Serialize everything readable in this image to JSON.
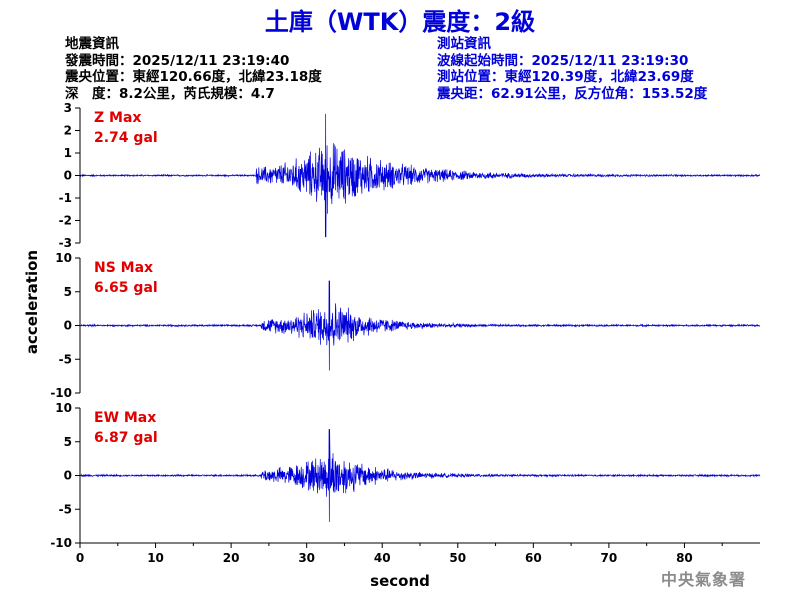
{
  "title": "土庫（WTK）震度：2級",
  "quake_info": {
    "heading": "地震資訊",
    "time": "發震時間：2025/12/11 23:19:40",
    "epicenter": "震央位置：東經120.66度，北緯23.18度",
    "depth_magnitude": "深　度：8.2公里，芮氏規模：4.7"
  },
  "station_info": {
    "heading": "測站資訊",
    "wave_start": "波線起始時間：2025/12/11 23:19:30",
    "location": "測站位置：東經120.39度，北緯23.69度",
    "distance_azimuth": "震央距：62.91公里，反方位角：153.52度"
  },
  "agency": "中央氣象署",
  "colors": {
    "title": "#0000d8",
    "trace": "#0000dd",
    "max_label": "#e00000",
    "agency": "#8c8c8c"
  },
  "chart_data": {
    "type": "line",
    "xlabel": "second",
    "ylabel": "acceleration",
    "xlim": [
      0,
      90
    ],
    "xticks": [
      0,
      10,
      20,
      30,
      40,
      50,
      60,
      70,
      80
    ],
    "panels": [
      {
        "component": "Z",
        "max_label": "Z Max",
        "max_value": "2.74 gal",
        "ylim": [
          -3,
          3
        ],
        "yticks": [
          -3,
          -2,
          -1,
          0,
          1,
          2,
          3
        ],
        "trace_envelope": {
          "noise": 0.04,
          "onset_s": 23.3,
          "peak_s": 32.5,
          "peak_abs": 2.74,
          "decay_tail_s": 52
        }
      },
      {
        "component": "NS",
        "max_label": "NS Max",
        "max_value": "6.65 gal",
        "ylim": [
          -10,
          10
        ],
        "yticks": [
          -10,
          -5,
          0,
          5,
          10
        ],
        "trace_envelope": {
          "noise": 0.15,
          "onset_s": 24.0,
          "peak_s": 33.0,
          "peak_abs": 6.65,
          "decay_tail_s": 45
        }
      },
      {
        "component": "EW",
        "max_label": "EW Max",
        "max_value": "6.87 gal",
        "ylim": [
          -10,
          10
        ],
        "yticks": [
          -10,
          -5,
          0,
          5,
          10
        ],
        "trace_envelope": {
          "noise": 0.15,
          "onset_s": 24.0,
          "peak_s": 33.0,
          "peak_abs": 6.87,
          "decay_tail_s": 45
        }
      }
    ]
  }
}
